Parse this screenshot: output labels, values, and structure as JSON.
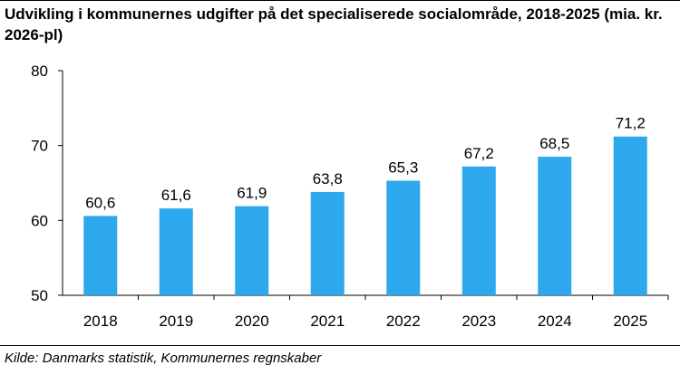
{
  "title": "Udvikling i kommunernes udgifter på det specialiserede socialområde, 2018-2025 (mia. kr. 2026-pl)",
  "source": "Kilde: Danmarks statistik, Kommunernes regnskaber",
  "colors": {
    "bar": "#2EA8EC",
    "axis": "#000000",
    "text": "#000000"
  },
  "chart_data": {
    "type": "bar",
    "title": "Udvikling i kommunernes udgifter på det specialiserede socialområde, 2018-2025 (mia. kr. 2026-pl)",
    "xlabel": "",
    "ylabel": "",
    "categories": [
      "2018",
      "2019",
      "2020",
      "2021",
      "2022",
      "2023",
      "2024",
      "2025"
    ],
    "values": [
      60.6,
      61.6,
      61.9,
      63.8,
      65.3,
      67.2,
      68.5,
      71.2
    ],
    "data_labels": [
      "60,6",
      "61,6",
      "61,9",
      "63,8",
      "65,3",
      "67,2",
      "68,5",
      "71,2"
    ],
    "ylim": [
      50,
      80
    ],
    "yticks": [
      50,
      60,
      70,
      80
    ],
    "grid": false,
    "legend": "none"
  }
}
